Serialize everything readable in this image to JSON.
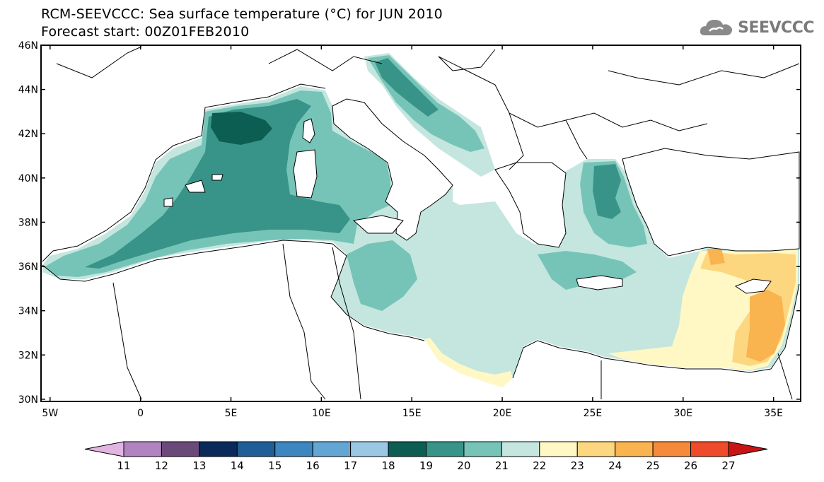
{
  "title": {
    "line1": "RCM-SEEVCCC: Sea surface temperature (°C) for JUN 2010",
    "line2": "Forecast start: 00Z01FEB2010"
  },
  "logo": {
    "text": "SEEVCCC",
    "icon": "cloud-icon"
  },
  "map": {
    "lon_range": [
      -5.5,
      36.5
    ],
    "lat_range": [
      29.9,
      46.0
    ],
    "lat_ticks": [
      "30N",
      "32N",
      "34N",
      "36N",
      "38N",
      "40N",
      "42N",
      "44N",
      "46N"
    ],
    "lon_ticks": [
      "5W",
      "0",
      "5E",
      "10E",
      "15E",
      "20E",
      "25E",
      "30E",
      "35E"
    ]
  },
  "colorbar": {
    "labels": [
      "11",
      "12",
      "13",
      "14",
      "15",
      "16",
      "17",
      "18",
      "19",
      "20",
      "21",
      "22",
      "23",
      "24",
      "25",
      "26",
      "27"
    ],
    "colors": [
      "#e2b4e2",
      "#b184c1",
      "#6a4a78",
      "#0b2a5c",
      "#1f5e96",
      "#3e86bf",
      "#63a6d3",
      "#9ac7e3",
      "#0c5e52",
      "#389488",
      "#76c4b7",
      "#c4e6df",
      "#fff8c4",
      "#fdd77f",
      "#f9b34f",
      "#f58a3a",
      "#ee4b2b",
      "#c81414"
    ]
  }
}
